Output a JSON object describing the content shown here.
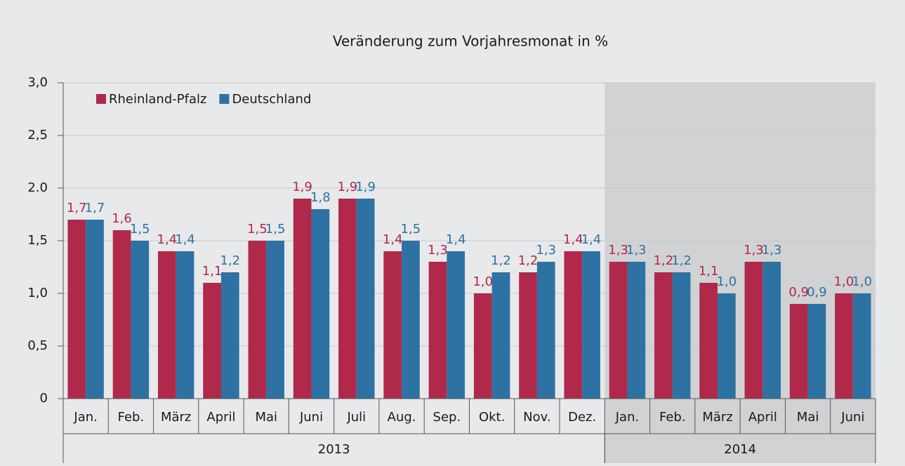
{
  "chart_data": {
    "type": "bar",
    "title": "Veränderung zum Vorjahresmonat in %",
    "categories": [
      "Jan.",
      "Feb.",
      "März",
      "April",
      "Mai",
      "Juni",
      "Juli",
      "Aug.",
      "Sep.",
      "Okt.",
      "Nov.",
      "Dez.",
      "Jan.",
      "Feb.",
      "März",
      "April",
      "Mai",
      "Juni"
    ],
    "groups": [
      {
        "label": "2013",
        "size": 12
      },
      {
        "label": "2014",
        "size": 6,
        "highlight": true
      }
    ],
    "series": [
      {
        "name": "Rheinland-Pfalz",
        "color": "#b0294a",
        "values": [
          1.7,
          1.6,
          1.4,
          1.1,
          1.5,
          1.9,
          1.9,
          1.4,
          1.3,
          1.0,
          1.2,
          1.4,
          1.3,
          1.2,
          1.1,
          1.3,
          0.9,
          1.0
        ],
        "value_labels": [
          "1,7",
          "1,6",
          "1,4",
          "1,1",
          "1,5",
          "1,9",
          "1,9",
          "1,4",
          "1,3",
          "1,0",
          "1,2",
          "1,4",
          "1,3",
          "1,2",
          "1,1",
          "1,3",
          "0,9",
          "1,0"
        ]
      },
      {
        "name": "Deutschland",
        "color": "#2d72a2",
        "values": [
          1.7,
          1.5,
          1.4,
          1.2,
          1.5,
          1.8,
          1.9,
          1.5,
          1.4,
          1.2,
          1.3,
          1.4,
          1.3,
          1.2,
          1.0,
          1.3,
          0.9,
          1.0
        ],
        "value_labels": [
          "1,7",
          "1,5",
          "1,4",
          "1,2",
          "1,5",
          "1,8",
          "1,9",
          "1,5",
          "1,4",
          "1,2",
          "1,3",
          "1,4",
          "1,3",
          "1,2",
          "1,0",
          "1,3",
          "0,9",
          "1,0"
        ]
      }
    ],
    "ylim": [
      0,
      3
    ],
    "yticks": [
      0,
      {
        "value": 0.5,
        "label": "0,5"
      },
      {
        "value": 1,
        "label": "1,0"
      },
      {
        "value": 1.5,
        "label": "1,5"
      },
      {
        "value": 2,
        "label": "2.0"
      },
      {
        "value": 2.5,
        "label": "2,5"
      },
      {
        "value": 3,
        "label": "3,0"
      }
    ],
    "grid": true,
    "legend": "top-left"
  }
}
